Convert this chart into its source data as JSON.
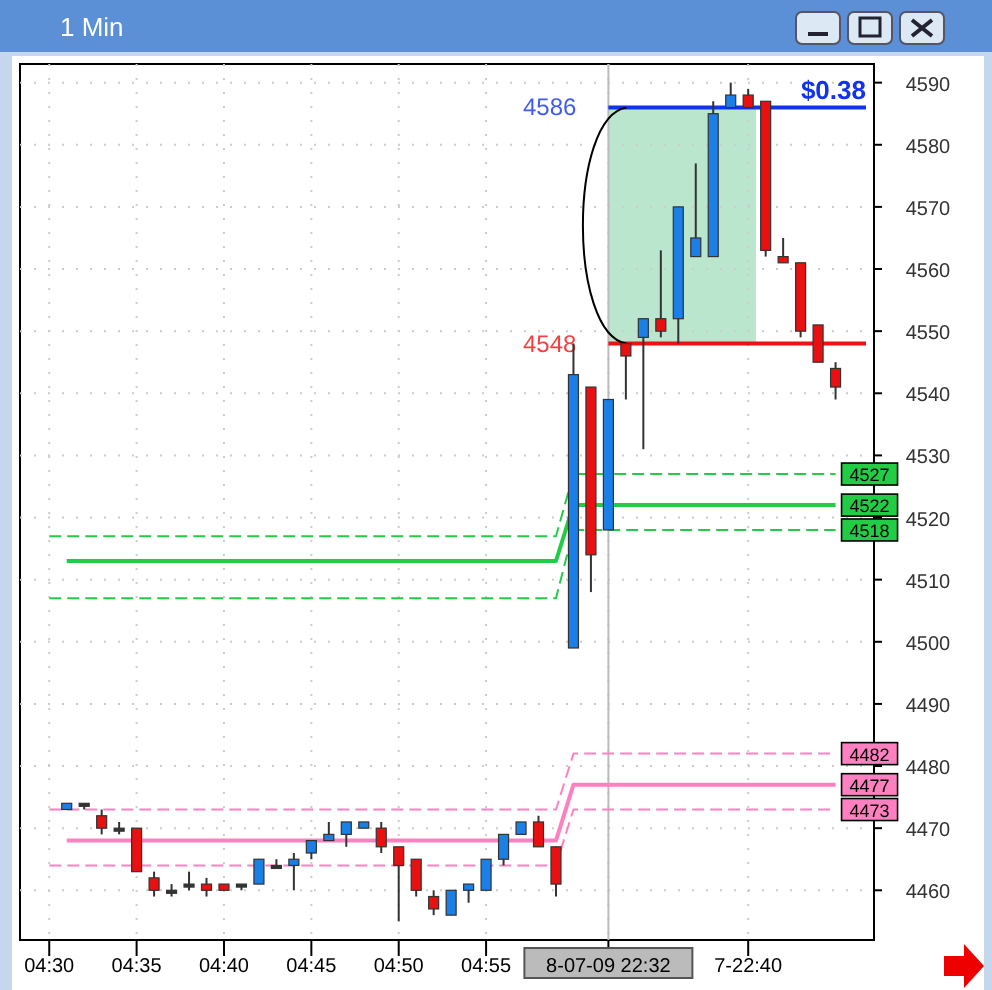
{
  "chart_data": {
    "type": "candlestick",
    "title": "1 Min",
    "categories": [
      "04:30",
      null,
      null,
      null,
      null,
      "04:35",
      null,
      null,
      null,
      null,
      "04:40",
      null,
      null,
      null,
      null,
      "04:45",
      null,
      null,
      null,
      null,
      "04:50",
      null,
      null,
      null,
      null,
      "04:55",
      null,
      null,
      null,
      null,
      null,
      null,
      "8-07-09 22:32",
      null,
      null,
      null,
      null,
      null,
      null,
      null,
      "7-22:40",
      null,
      null,
      null,
      null,
      null
    ],
    "ohlc": [
      null,
      [
        4473,
        4474,
        4473,
        4474
      ],
      [
        4474,
        4474,
        4473,
        4474
      ],
      [
        4472,
        4473,
        4469,
        4470
      ],
      [
        4470,
        4471,
        4469,
        4470
      ],
      [
        4470,
        4470,
        4463,
        4463
      ],
      [
        4462,
        4463,
        4459,
        4460
      ],
      [
        4460,
        4461,
        4459,
        4460
      ],
      [
        4461,
        4463,
        4460,
        4461
      ],
      [
        4461,
        4462,
        4459,
        4460
      ],
      [
        4461,
        4461,
        4460,
        4460
      ],
      [
        4461,
        4461,
        4460,
        4461
      ],
      [
        4461,
        4465,
        4461,
        4465
      ],
      [
        4464,
        4465,
        4464,
        4464
      ],
      [
        4464,
        4466,
        4460,
        4465
      ],
      [
        4466,
        4468,
        4465,
        4468
      ],
      [
        4468,
        4471,
        4468,
        4469
      ],
      [
        4469,
        4471,
        4467,
        4471
      ],
      [
        4470,
        4471,
        4470,
        4471
      ],
      [
        4470,
        4471,
        4466,
        4467
      ],
      [
        4467,
        4467,
        4455,
        4464
      ],
      [
        4465,
        4465,
        4459,
        4460
      ],
      [
        4459,
        4460,
        4456,
        4457
      ],
      [
        4456,
        4460,
        4456,
        4460
      ],
      [
        4460,
        4461,
        4458,
        4461
      ],
      [
        4460,
        4465,
        4460,
        4465
      ],
      [
        4465,
        4469,
        4464,
        4469
      ],
      [
        4469,
        4471,
        4469,
        4471
      ],
      [
        4471,
        4472,
        4467,
        4467
      ],
      [
        4467,
        4467,
        4459,
        4461
      ],
      [
        4499,
        4548,
        4499,
        4543
      ],
      [
        4541,
        4541,
        4508,
        4514
      ],
      [
        4518,
        4539,
        4518,
        4539
      ],
      [
        4548,
        4548,
        4539,
        4546
      ],
      [
        4549,
        4552,
        4531,
        4552
      ],
      [
        4552,
        4563,
        4549,
        4550
      ],
      [
        4552,
        4570,
        4548,
        4570
      ],
      [
        4562,
        4577,
        4562,
        4565
      ],
      [
        4562,
        4587,
        4562,
        4585
      ],
      [
        4586,
        4590,
        4586,
        4588
      ],
      [
        4588,
        4589,
        4586,
        4586
      ],
      [
        4587,
        4587,
        4562,
        4563
      ],
      [
        4562,
        4565,
        4561,
        4561
      ],
      [
        4561,
        4561,
        4549,
        4550
      ],
      [
        4551,
        4551,
        4545,
        4545
      ],
      [
        4544,
        4545,
        4539,
        4541
      ]
    ],
    "colors": [
      null,
      "#1a7fe6",
      "#333333",
      "#e81010",
      "#333333",
      "#e81010",
      "#e81010",
      "#333333",
      "#333333",
      "#e81010",
      "#e81010",
      "#333333",
      "#1a7fe6",
      "#333333",
      "#1a7fe6",
      "#1a7fe6",
      "#1a7fe6",
      "#1a7fe6",
      "#1a7fe6",
      "#e81010",
      "#e81010",
      "#e81010",
      "#e81010",
      "#1a7fe6",
      "#1a7fe6",
      "#1a7fe6",
      "#1a7fe6",
      "#1a7fe6",
      "#e81010",
      "#e81010",
      "#1a7fe6",
      "#e81010",
      "#1a7fe6",
      "#e81010",
      "#1a7fe6",
      "#e81010",
      "#1a7fe6",
      "#1a7fe6",
      "#1a7fe6",
      "#1a7fe6",
      "#e81010",
      "#e81010",
      "#e81010",
      "#e81010",
      "#e81010",
      "#e81010"
    ],
    "series": [
      {
        "type": "line",
        "color": "#22cc44",
        "line_style": "dashed",
        "values": [
          4517,
          4517,
          4517,
          4517,
          4517,
          4517,
          4517,
          4517,
          4517,
          4517,
          4517,
          4517,
          4517,
          4517,
          4517,
          4517,
          4517,
          4517,
          4517,
          4517,
          4517,
          4517,
          4517,
          4517,
          4517,
          4517,
          4517,
          4517,
          4517,
          4517,
          4527,
          4527,
          4527,
          4527,
          4527,
          4527,
          4527,
          4527,
          4527,
          4527,
          4527,
          4527,
          4527,
          4527,
          4527,
          4527
        ],
        "value_labels": [
          null,
          null,
          null,
          null,
          null,
          null,
          null,
          null,
          null,
          null,
          null,
          null,
          null,
          null,
          null,
          null,
          null,
          null,
          null,
          null,
          null,
          null,
          null,
          null,
          null,
          null,
          null,
          null,
          null,
          null,
          null,
          null,
          null,
          null,
          null,
          null,
          null,
          null,
          null,
          null,
          null,
          null,
          null,
          null,
          null,
          "4527"
        ]
      },
      {
        "type": "line",
        "color": "#22cc44",
        "line_style": "solid",
        "values": [
          null,
          4513,
          4513,
          4513,
          4513,
          4513,
          4513,
          4513,
          4513,
          4513,
          4513,
          4513,
          4513,
          4513,
          4513,
          4513,
          4513,
          4513,
          4513,
          4513,
          4513,
          4513,
          4513,
          4513,
          4513,
          4513,
          4513,
          4513,
          4513,
          4513,
          4522,
          4522,
          4522,
          4522,
          4522,
          4522,
          4522,
          4522,
          4522,
          4522,
          4522,
          4522,
          4522,
          4522,
          4522,
          4522
        ],
        "value_labels": [
          null,
          null,
          null,
          null,
          null,
          null,
          null,
          null,
          null,
          null,
          null,
          null,
          null,
          null,
          null,
          null,
          null,
          null,
          null,
          null,
          null,
          null,
          null,
          null,
          null,
          null,
          null,
          null,
          null,
          null,
          null,
          null,
          null,
          null,
          null,
          null,
          null,
          null,
          null,
          null,
          null,
          null,
          null,
          null,
          null,
          "4522"
        ]
      },
      {
        "type": "line",
        "color": "#22cc44",
        "line_style": "dashed",
        "values": [
          4507,
          4507,
          4507,
          4507,
          4507,
          4507,
          4507,
          4507,
          4507,
          4507,
          4507,
          4507,
          4507,
          4507,
          4507,
          4507,
          4507,
          4507,
          4507,
          4507,
          4507,
          4507,
          4507,
          4507,
          4507,
          4507,
          4507,
          4507,
          4507,
          4507,
          4518,
          4518,
          4518,
          4518,
          4518,
          4518,
          4518,
          4518,
          4518,
          4518,
          4518,
          4518,
          4518,
          4518,
          4518,
          4518
        ],
        "value_labels": [
          null,
          null,
          null,
          null,
          null,
          null,
          null,
          null,
          null,
          null,
          null,
          null,
          null,
          null,
          null,
          null,
          null,
          null,
          null,
          null,
          null,
          null,
          null,
          null,
          null,
          null,
          null,
          null,
          null,
          null,
          null,
          null,
          null,
          null,
          null,
          null,
          null,
          null,
          null,
          null,
          null,
          null,
          null,
          null,
          null,
          "4518"
        ]
      },
      {
        "type": "line",
        "color": "#ff80c0",
        "line_style": "dashed",
        "values": [
          4473,
          4473,
          4473,
          4473,
          4473,
          4473,
          4473,
          4473,
          4473,
          4473,
          4473,
          4473,
          4473,
          4473,
          4473,
          4473,
          4473,
          4473,
          4473,
          4473,
          4473,
          4473,
          4473,
          4473,
          4473,
          4473,
          4473,
          4473,
          4473,
          4473,
          4482,
          4482,
          4482,
          4482,
          4482,
          4482,
          4482,
          4482,
          4482,
          4482,
          4482,
          4482,
          4482,
          4482,
          4482,
          4482
        ],
        "value_labels": [
          null,
          null,
          null,
          null,
          null,
          null,
          null,
          null,
          null,
          null,
          null,
          null,
          null,
          null,
          null,
          null,
          null,
          null,
          null,
          null,
          null,
          null,
          null,
          null,
          null,
          null,
          null,
          null,
          null,
          null,
          null,
          null,
          null,
          null,
          null,
          null,
          null,
          null,
          null,
          null,
          null,
          null,
          null,
          null,
          null,
          "4482"
        ]
      },
      {
        "type": "line",
        "color": "#ff80c0",
        "line_style": "solid",
        "values": [
          null,
          4468,
          4468,
          4468,
          4468,
          4468,
          4468,
          4468,
          4468,
          4468,
          4468,
          4468,
          4468,
          4468,
          4468,
          4468,
          4468,
          4468,
          4468,
          4468,
          4468,
          4468,
          4468,
          4468,
          4468,
          4468,
          4468,
          4468,
          4468,
          4468,
          4477,
          4477,
          4477,
          4477,
          4477,
          4477,
          4477,
          4477,
          4477,
          4477,
          4477,
          4477,
          4477,
          4477,
          4477,
          4477
        ],
        "value_labels": [
          null,
          null,
          null,
          null,
          null,
          null,
          null,
          null,
          null,
          null,
          null,
          null,
          null,
          null,
          null,
          null,
          null,
          null,
          null,
          null,
          null,
          null,
          null,
          null,
          null,
          null,
          null,
          null,
          null,
          null,
          null,
          null,
          null,
          null,
          null,
          null,
          null,
          null,
          null,
          null,
          null,
          null,
          null,
          null,
          null,
          "4477"
        ]
      },
      {
        "type": "line",
        "color": "#ff80c0",
        "line_style": "dashed",
        "values": [
          4464,
          4464,
          4464,
          4464,
          4464,
          4464,
          4464,
          4464,
          4464,
          4464,
          4464,
          4464,
          4464,
          4464,
          4464,
          4464,
          4464,
          4464,
          4464,
          4464,
          4464,
          4464,
          4464,
          4464,
          4464,
          4464,
          4464,
          4464,
          4464,
          4464,
          4473,
          4473,
          4473,
          4473,
          4473,
          4473,
          4473,
          4473,
          4473,
          4473,
          4473,
          4473,
          4473,
          4473,
          4473,
          4473
        ],
        "value_labels": [
          null,
          null,
          null,
          null,
          null,
          null,
          null,
          null,
          null,
          null,
          null,
          null,
          null,
          null,
          null,
          null,
          null,
          null,
          null,
          null,
          null,
          null,
          null,
          null,
          null,
          null,
          null,
          null,
          null,
          null,
          null,
          null,
          null,
          null,
          null,
          null,
          null,
          null,
          null,
          null,
          null,
          null,
          null,
          null,
          null,
          "4473"
        ]
      }
    ],
    "ylim": [
      4452,
      4593
    ],
    "yticks": [
      4460,
      4470,
      4480,
      4490,
      4500,
      4510,
      4520,
      4530,
      4540,
      4550,
      4560,
      4570,
      4580,
      4590
    ],
    "grid": true,
    "ref_lines": [
      {
        "axis": "x",
        "value": "8-07-09 22:32",
        "label": null,
        "color": "#bbbbbb"
      },
      {
        "axis": "y",
        "value": 4586,
        "label": "4586",
        "color": "#1133ee"
      },
      {
        "axis": "y",
        "value": 4548,
        "label": "4548",
        "color": "#ee1111"
      }
    ],
    "bands": [
      {
        "axis": "y",
        "from": 4548,
        "to": 4586,
        "label": null,
        "color": "#b2e3c8"
      }
    ],
    "annotations": [
      "$0.38"
    ]
  }
}
